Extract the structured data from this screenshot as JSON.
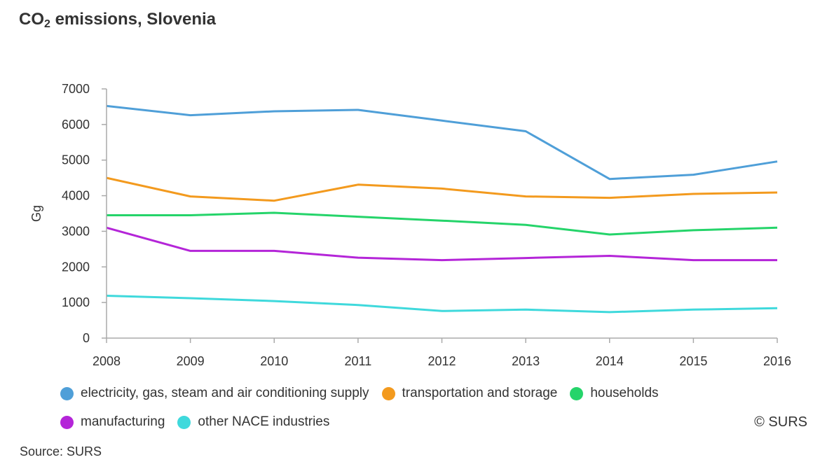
{
  "title": {
    "prefix": "CO",
    "sub": "2",
    "rest": " emissions, Slovenia"
  },
  "credit": "© SURS",
  "source": "Source: SURS",
  "chart_data": {
    "type": "line",
    "title": "CO2 emissions, Slovenia",
    "xlabel": "",
    "ylabel": "Gg",
    "x": [
      "2008",
      "2009",
      "2010",
      "2011",
      "2012",
      "2013",
      "2014",
      "2015",
      "2016"
    ],
    "ylim": [
      0,
      7000
    ],
    "yticks": [
      0,
      1000,
      2000,
      3000,
      4000,
      5000,
      6000,
      7000
    ],
    "grid": false,
    "legend_position": "bottom",
    "series": [
      {
        "name": "electricity, gas, steam and air conditioning supply",
        "color": "#4f9fd8",
        "values": [
          6520,
          6260,
          6370,
          6410,
          6110,
          5810,
          4470,
          4590,
          4960
        ]
      },
      {
        "name": "transportation and storage",
        "color": "#f39a1e",
        "values": [
          4500,
          3980,
          3860,
          4310,
          4200,
          3980,
          3940,
          4050,
          4090
        ]
      },
      {
        "name": "households",
        "color": "#25d46a",
        "values": [
          3450,
          3450,
          3520,
          3410,
          3300,
          3180,
          2910,
          3030,
          3100
        ]
      },
      {
        "name": "manufacturing",
        "color": "#b425d8",
        "values": [
          3100,
          2450,
          2450,
          2260,
          2190,
          2250,
          2310,
          2190,
          2190
        ]
      },
      {
        "name": "other NACE industries",
        "color": "#3fd9dc",
        "values": [
          1190,
          1120,
          1040,
          930,
          760,
          800,
          730,
          800,
          840
        ]
      }
    ]
  }
}
